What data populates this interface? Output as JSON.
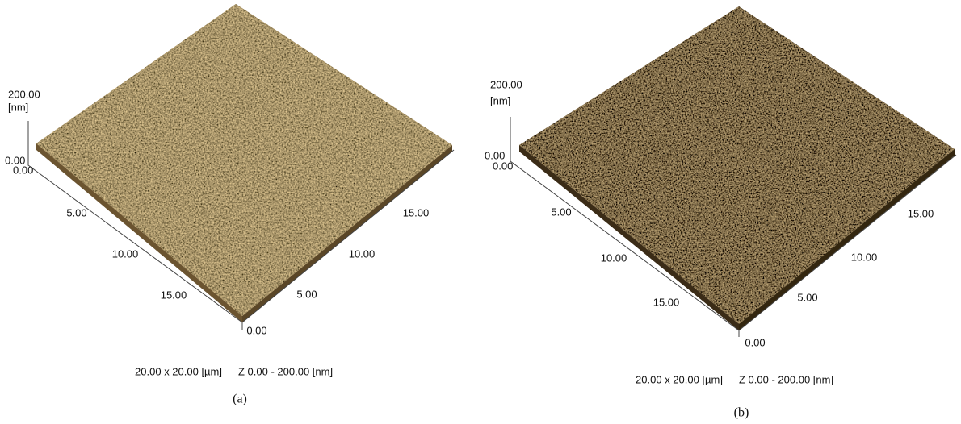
{
  "panels": [
    {
      "label": "(a)",
      "z_max": "200.00",
      "z_unit": "[nm]",
      "z_min": "0.00",
      "origin": "0.00",
      "left_axis": [
        "5.00",
        "10.00",
        "15.00"
      ],
      "right_axis": [
        "0.00",
        "5.00",
        "10.00",
        "15.00"
      ],
      "caption_size": "20.00 x 20.00 [µm]",
      "caption_z": "Z  0.00  -  200.00 [nm]"
    },
    {
      "label": "(b)",
      "z_max": "200.00",
      "z_unit": "[nm]",
      "z_min": "0.00",
      "origin": "0.00",
      "left_axis": [
        "5.00",
        "10.00",
        "15.00"
      ],
      "right_axis": [
        "0.00",
        "5.00",
        "10.00",
        "15.00"
      ],
      "caption_size": "20.00 x 20.00 [µm]",
      "caption_z": "Z  0.00  -  200.00 [nm]"
    }
  ]
}
